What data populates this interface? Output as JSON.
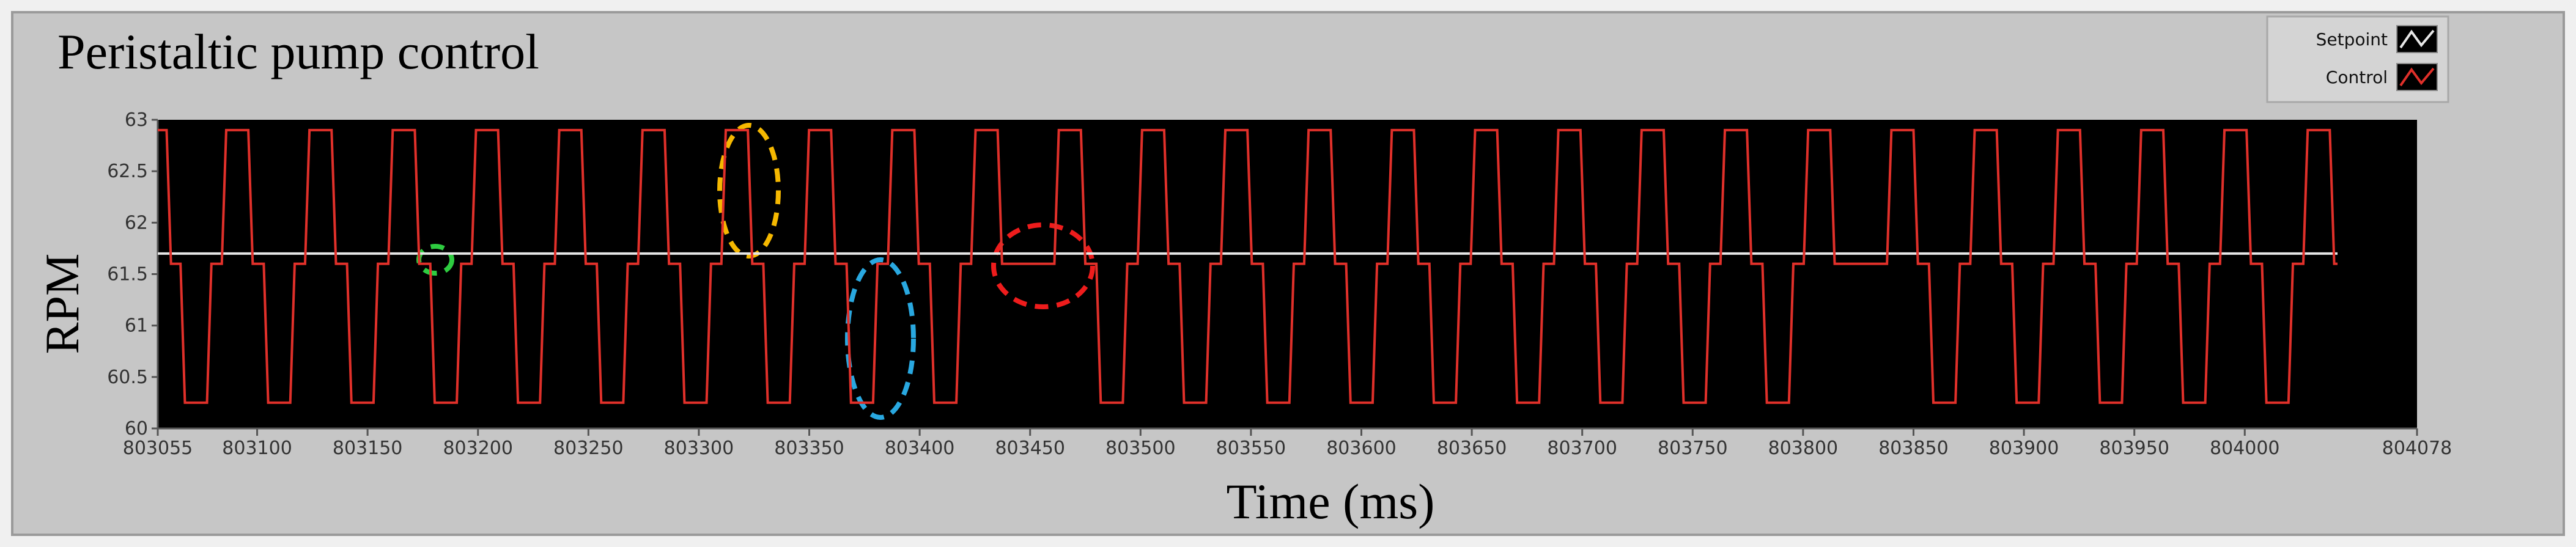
{
  "chart_data": {
    "type": "line",
    "title": "Peristaltic pump control",
    "x_label": "Time (ms)",
    "y_label": "RPM",
    "xlim": [
      803055,
      804078
    ],
    "xticks": [
      803055,
      803100,
      803150,
      803200,
      803250,
      803300,
      803350,
      803400,
      803450,
      803500,
      803550,
      803600,
      803650,
      803700,
      803750,
      803800,
      803850,
      803900,
      803950,
      804000,
      804078
    ],
    "ylim": [
      60,
      63
    ],
    "yticks": [
      60,
      60.5,
      61,
      61.5,
      62,
      62.5,
      63
    ],
    "grid": false,
    "legend": "top-right",
    "series": [
      {
        "name": "Setpoint",
        "color": "#e6e6e6",
        "x": [
          803055,
          804042
        ],
        "values": [
          61.7,
          61.7
        ]
      },
      {
        "name": "Control",
        "color": "#e0302a",
        "x": [
          803055,
          803059,
          803061,
          803065.3,
          803067.3,
          803077.3,
          803079.3,
          803084,
          803086,
          803096,
          803098,
          803103,
          803105,
          803115,
          803117,
          803121.7,
          803123.7,
          803133.7,
          803135.7,
          803140.7,
          803142.7,
          803152.7,
          803154.7,
          803159.4,
          803161.4,
          803171.4,
          803173.4,
          803178.4,
          803180.4,
          803190.4,
          803192.4,
          803197.1,
          803199.1,
          803209.1,
          803211.1,
          803216.1,
          803218.1,
          803228.1,
          803230.1,
          803234.8,
          803236.8,
          803246.8,
          803248.8,
          803253.8,
          803255.8,
          803265.8,
          803267.8,
          803272.5,
          803274.5,
          803284.5,
          803286.5,
          803291.5,
          803293.5,
          803303.5,
          803305.5,
          803310.2,
          803312.2,
          803322.2,
          803324.2,
          803329.2,
          803331.2,
          803341.2,
          803343.2,
          803347.9,
          803349.9,
          803359.9,
          803361.9,
          803366.9,
          803368.9,
          803378.9,
          803380.9,
          803385.6,
          803387.6,
          803397.6,
          803399.6,
          803404.6,
          803406.6,
          803416.6,
          803418.6,
          803423.3,
          803425.3,
          803435.3,
          803437.3,
          803442.3,
          803444.3,
          803454.3,
          803456.3,
          803461,
          803463,
          803473,
          803475,
          803480,
          803482,
          803492,
          803494,
          803498.7,
          803500.7,
          803510.7,
          803512.7,
          803517.7,
          803519.7,
          803529.7,
          803531.7,
          803536.4,
          803538.4,
          803548.4,
          803550.4,
          803555.4,
          803557.4,
          803567.4,
          803569.4,
          803574.1,
          803576.1,
          803586.1,
          803588.1,
          803593.1,
          803595.1,
          803605.1,
          803607.1,
          803611.8,
          803613.8,
          803623.8,
          803625.8,
          803630.8,
          803632.8,
          803642.8,
          803644.8,
          803649.5,
          803651.5,
          803661.5,
          803663.5,
          803668.5,
          803670.5,
          803680.5,
          803682.5,
          803687.2,
          803689.2,
          803699.2,
          803701.2,
          803706.2,
          803708.2,
          803718.2,
          803720.2,
          803724.9,
          803726.9,
          803736.9,
          803738.9,
          803743.9,
          803745.9,
          803755.9,
          803757.9,
          803762.6,
          803764.6,
          803774.6,
          803776.6,
          803781.6,
          803783.6,
          803793.6,
          803795.6,
          803800.3,
          803802.3,
          803812.3,
          803814.3,
          803819.3,
          803821.3,
          803831.3,
          803833.3,
          803838,
          803840,
          803850,
          803852,
          803857,
          803859,
          803869,
          803871,
          803875.7,
          803877.7,
          803887.7,
          803889.7,
          803894.7,
          803896.7,
          803906.7,
          803908.7,
          803913.4,
          803915.4,
          803925.4,
          803927.4,
          803932.4,
          803934.4,
          803944.4,
          803946.4,
          803951.1,
          803953.1,
          803963.1,
          803965.1,
          803970.1,
          803972.1,
          803982.1,
          803984.1,
          803988.8,
          803990.8,
          804000.8,
          804002.8,
          804007.8,
          804009.8,
          804019.8,
          804021.8,
          804026.5,
          804028.5,
          804038.5,
          804040.5,
          804042
        ],
        "values": [
          62.9,
          62.9,
          61.6,
          61.6,
          60.25,
          60.25,
          61.6,
          61.6,
          62.9,
          62.9,
          61.6,
          61.6,
          60.25,
          60.25,
          61.6,
          61.6,
          62.9,
          62.9,
          61.6,
          61.6,
          60.25,
          60.25,
          61.6,
          61.6,
          62.9,
          62.9,
          61.6,
          61.6,
          60.25,
          60.25,
          61.6,
          61.6,
          62.9,
          62.9,
          61.6,
          61.6,
          60.25,
          60.25,
          61.6,
          61.6,
          62.9,
          62.9,
          61.6,
          61.6,
          60.25,
          60.25,
          61.6,
          61.6,
          62.9,
          62.9,
          61.6,
          61.6,
          60.25,
          60.25,
          61.6,
          61.6,
          62.9,
          62.9,
          61.6,
          61.6,
          60.25,
          60.25,
          61.6,
          61.6,
          62.9,
          62.9,
          61.6,
          61.6,
          60.25,
          60.25,
          61.6,
          61.6,
          62.9,
          62.9,
          61.6,
          61.6,
          60.25,
          60.25,
          61.6,
          61.6,
          62.9,
          62.9,
          61.6,
          61.6,
          61.6,
          61.6,
          61.6,
          61.6,
          62.9,
          62.9,
          61.6,
          61.6,
          60.25,
          60.25,
          61.6,
          61.6,
          62.9,
          62.9,
          61.6,
          61.6,
          60.25,
          60.25,
          61.6,
          61.6,
          62.9,
          62.9,
          61.6,
          61.6,
          60.25,
          60.25,
          61.6,
          61.6,
          62.9,
          62.9,
          61.6,
          61.6,
          60.25,
          60.25,
          61.6,
          61.6,
          62.9,
          62.9,
          61.6,
          61.6,
          60.25,
          60.25,
          61.6,
          61.6,
          62.9,
          62.9,
          61.6,
          61.6,
          60.25,
          60.25,
          61.6,
          61.6,
          62.9,
          62.9,
          61.6,
          61.6,
          60.25,
          60.25,
          61.6,
          61.6,
          62.9,
          62.9,
          61.6,
          61.6,
          60.25,
          60.25,
          61.6,
          61.6,
          62.9,
          62.9,
          61.6,
          61.6,
          60.25,
          60.25,
          61.6,
          61.6,
          62.9,
          62.9,
          61.6,
          61.6,
          61.6,
          61.6,
          61.6,
          61.6,
          62.9,
          62.9,
          61.6,
          61.6,
          60.25,
          60.25,
          61.6,
          61.6,
          62.9,
          62.9,
          61.6,
          61.6,
          60.25,
          60.25,
          61.6,
          61.6,
          62.9,
          62.9,
          61.6,
          61.6,
          60.25,
          60.25,
          61.6,
          61.6,
          62.9,
          62.9,
          61.6,
          61.6,
          60.25,
          60.25,
          61.6,
          61.6,
          62.9,
          62.9,
          61.6,
          61.6,
          60.25,
          60.25,
          61.6,
          61.6,
          62.9,
          62.9,
          61.6,
          61.6
        ]
      }
    ]
  }
}
